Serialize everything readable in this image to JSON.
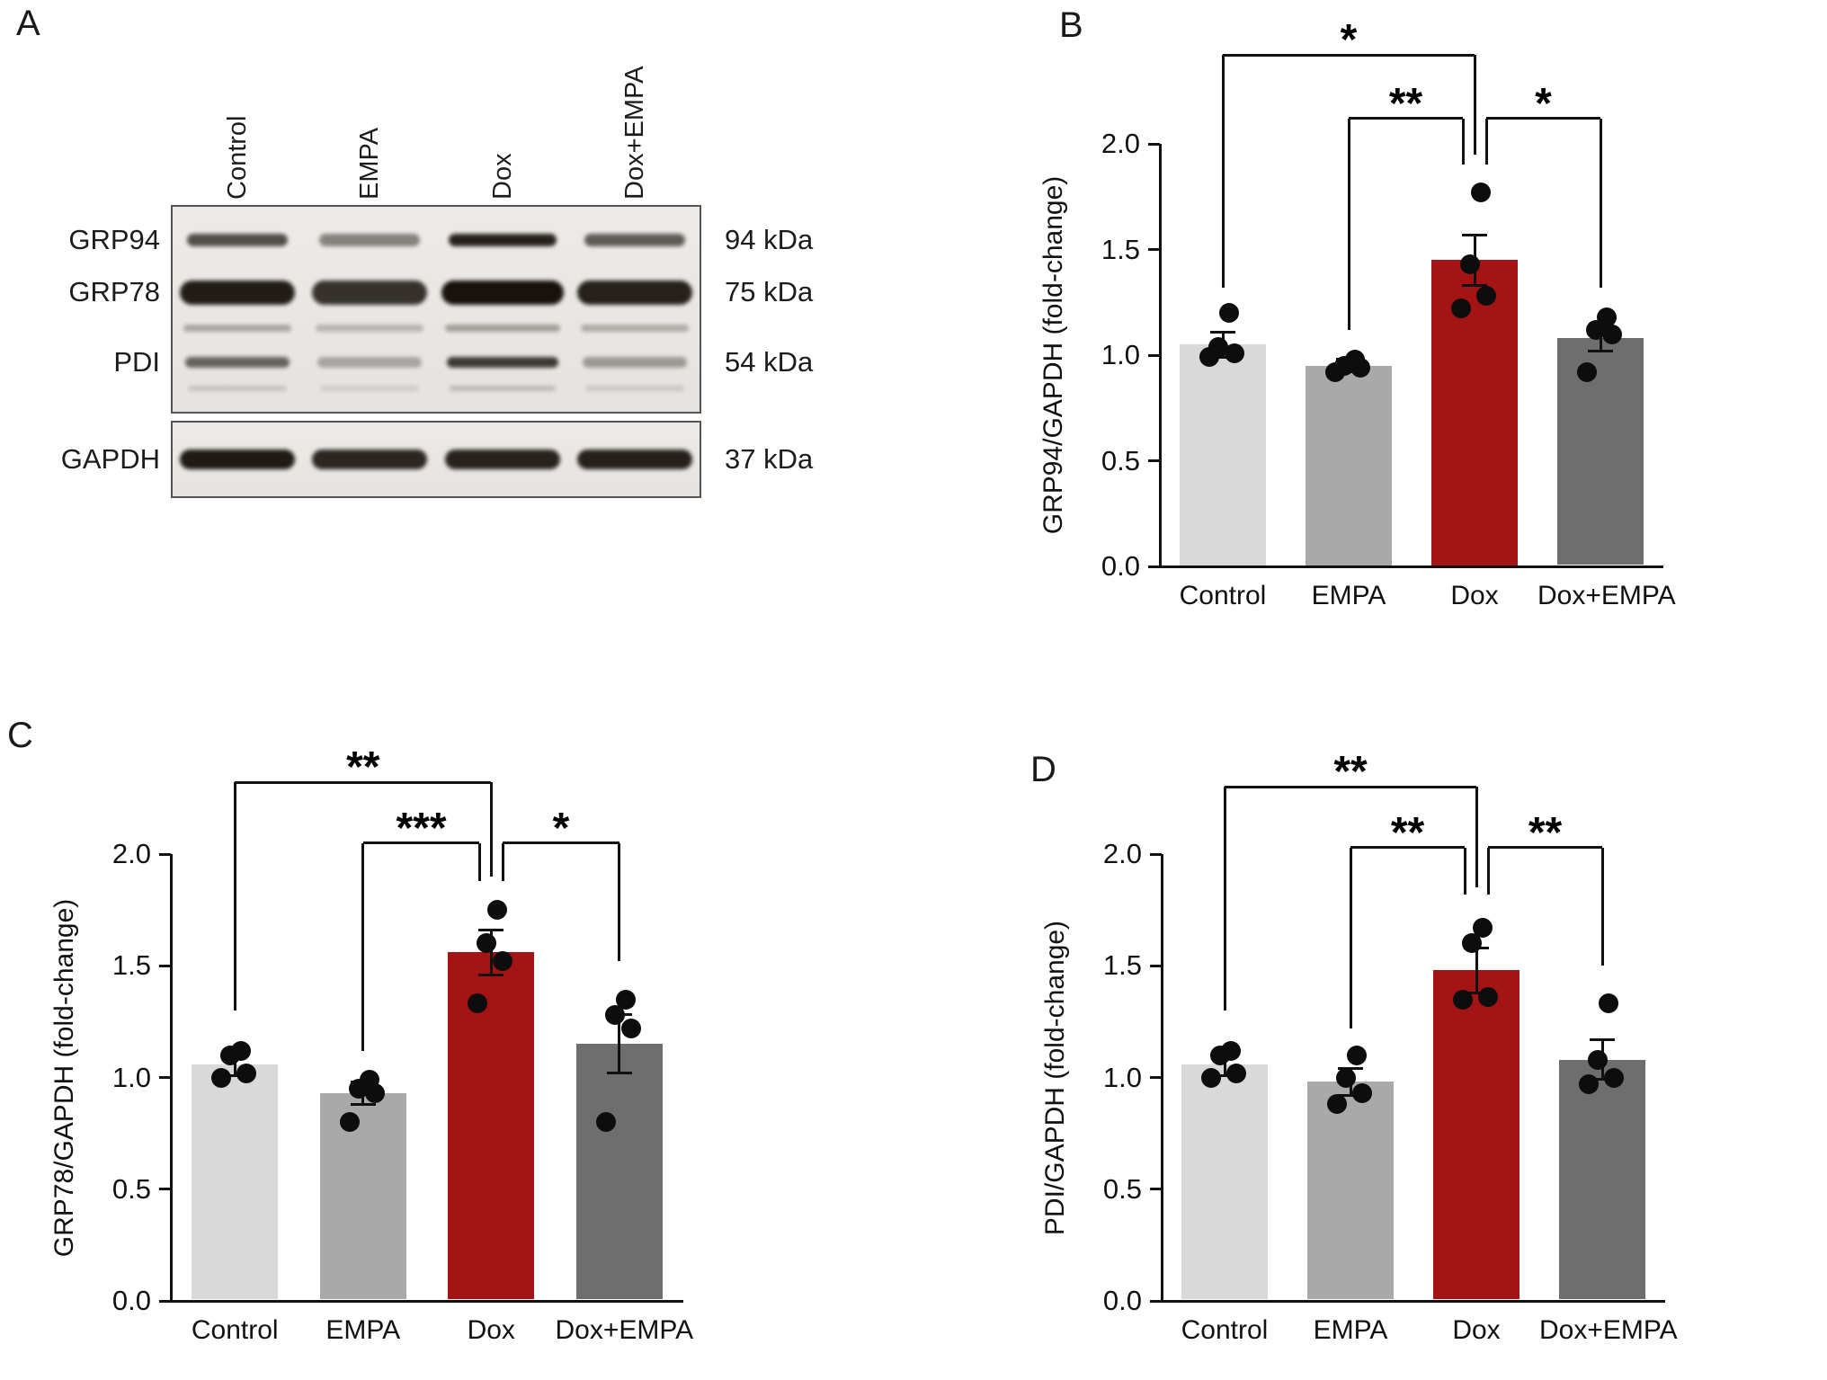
{
  "panels": {
    "A": "A",
    "B": "B",
    "C": "C",
    "D": "D"
  },
  "blot": {
    "lanes": [
      "Control",
      "EMPA",
      "Dox",
      "Dox+EMPA"
    ],
    "rows": [
      {
        "label": "GRP94",
        "kda": "94 kDa",
        "y": 0.17,
        "band_h": 14,
        "band_w": 112,
        "intensities": [
          0.72,
          0.48,
          0.92,
          0.66
        ]
      },
      {
        "label": "GRP78",
        "kda": "75 kDa",
        "y": 0.42,
        "band_h": 27,
        "band_w": 128,
        "intensities": [
          0.95,
          0.85,
          1.0,
          0.93
        ]
      },
      {
        "label": "",
        "kda": "",
        "y": 0.59,
        "band_h": 8,
        "band_w": 120,
        "intensities": [
          0.3,
          0.24,
          0.34,
          0.28
        ]
      },
      {
        "label": "PDI",
        "kda": "54 kDa",
        "y": 0.755,
        "band_h": 12,
        "band_w": 116,
        "intensities": [
          0.62,
          0.3,
          0.82,
          0.36
        ]
      },
      {
        "label": "",
        "kda": "",
        "y": 0.88,
        "band_h": 6,
        "band_w": 110,
        "intensities": [
          0.16,
          0.12,
          0.2,
          0.14
        ]
      }
    ],
    "gapdh": {
      "label": "GAPDH",
      "kda": "37 kDa",
      "band_h": 22,
      "band_w": 128,
      "intensities": [
        0.96,
        0.9,
        0.92,
        0.93
      ]
    }
  },
  "chart_data": [
    {
      "id": "B",
      "type": "bar",
      "title": "",
      "ylabel": "GRP94/GAPDH (fold-change)",
      "xlabel": "",
      "categories": [
        "Control",
        "EMPA",
        "Dox",
        "Dox+EMPA"
      ],
      "values": [
        1.05,
        0.95,
        1.45,
        1.08
      ],
      "errors": [
        0.06,
        0.03,
        0.12,
        0.06
      ],
      "points": [
        [
          0.99,
          1.01,
          1.04,
          1.2
        ],
        [
          0.92,
          0.94,
          0.95,
          0.98
        ],
        [
          1.22,
          1.28,
          1.43,
          1.77
        ],
        [
          0.92,
          1.1,
          1.12,
          1.18
        ]
      ],
      "bar_colors": [
        "#d9d9d9",
        "#a9a9a9",
        "#a41414",
        "#6e6e6e"
      ],
      "ylim": [
        0,
        2
      ],
      "yticks": [
        0,
        0.5,
        1,
        1.5,
        2
      ],
      "grid": false,
      "significance": [
        {
          "a": 0,
          "b": 2,
          "label": "*",
          "y": 2.42,
          "a_drop": 1.32,
          "b_drop": 1.95,
          "a_off": 0,
          "b_off": 0
        },
        {
          "a": 1,
          "b": 2,
          "label": "**",
          "y": 2.12,
          "a_drop": 1.12,
          "b_drop": 1.9,
          "a_off": 0,
          "b_off": -13
        },
        {
          "a": 2,
          "b": 3,
          "label": "*",
          "y": 2.12,
          "a_drop": 1.9,
          "b_drop": 1.32,
          "a_off": 13,
          "b_off": 0
        }
      ]
    },
    {
      "id": "C",
      "type": "bar",
      "title": "",
      "ylabel": "GRP78/GAPDH (fold-change)",
      "xlabel": "",
      "categories": [
        "Control",
        "EMPA",
        "Dox",
        "Dox+EMPA"
      ],
      "values": [
        1.06,
        0.93,
        1.56,
        1.15
      ],
      "errors": [
        0.05,
        0.05,
        0.1,
        0.13
      ],
      "points": [
        [
          1.0,
          1.02,
          1.1,
          1.12
        ],
        [
          0.8,
          0.93,
          0.95,
          0.99
        ],
        [
          1.33,
          1.52,
          1.6,
          1.75
        ],
        [
          0.8,
          1.22,
          1.28,
          1.35
        ]
      ],
      "bar_colors": [
        "#d9d9d9",
        "#a9a9a9",
        "#a41414",
        "#6e6e6e"
      ],
      "ylim": [
        0,
        2
      ],
      "yticks": [
        0,
        0.5,
        1,
        1.5,
        2
      ],
      "grid": false,
      "significance": [
        {
          "a": 0,
          "b": 2,
          "label": "**",
          "y": 2.32,
          "a_drop": 1.3,
          "b_drop": 1.9,
          "a_off": 0,
          "b_off": 0
        },
        {
          "a": 1,
          "b": 2,
          "label": "***",
          "y": 2.05,
          "a_drop": 1.12,
          "b_drop": 1.88,
          "a_off": 0,
          "b_off": -13
        },
        {
          "a": 2,
          "b": 3,
          "label": "*",
          "y": 2.05,
          "a_drop": 1.88,
          "b_drop": 1.52,
          "a_off": 13,
          "b_off": 0
        }
      ]
    },
    {
      "id": "D",
      "type": "bar",
      "title": "",
      "ylabel": "PDI/GAPDH (fold-change)",
      "xlabel": "",
      "categories": [
        "Control",
        "EMPA",
        "Dox",
        "Dox+EMPA"
      ],
      "values": [
        1.06,
        0.98,
        1.48,
        1.08
      ],
      "errors": [
        0.05,
        0.06,
        0.1,
        0.09
      ],
      "points": [
        [
          1.0,
          1.02,
          1.1,
          1.12
        ],
        [
          0.88,
          0.93,
          1.0,
          1.1
        ],
        [
          1.35,
          1.36,
          1.6,
          1.67
        ],
        [
          0.97,
          1.0,
          1.08,
          1.33
        ]
      ],
      "bar_colors": [
        "#d9d9d9",
        "#a9a9a9",
        "#a41414",
        "#6e6e6e"
      ],
      "ylim": [
        0,
        2
      ],
      "yticks": [
        0,
        0.5,
        1,
        1.5,
        2
      ],
      "grid": false,
      "significance": [
        {
          "a": 0,
          "b": 2,
          "label": "**",
          "y": 2.3,
          "a_drop": 1.3,
          "b_drop": 1.85,
          "a_off": 0,
          "b_off": 0
        },
        {
          "a": 1,
          "b": 2,
          "label": "**",
          "y": 2.03,
          "a_drop": 1.22,
          "b_drop": 1.82,
          "a_off": 0,
          "b_off": -13
        },
        {
          "a": 2,
          "b": 3,
          "label": "**",
          "y": 2.03,
          "a_drop": 1.82,
          "b_drop": 1.5,
          "a_off": 13,
          "b_off": 0
        }
      ]
    }
  ]
}
